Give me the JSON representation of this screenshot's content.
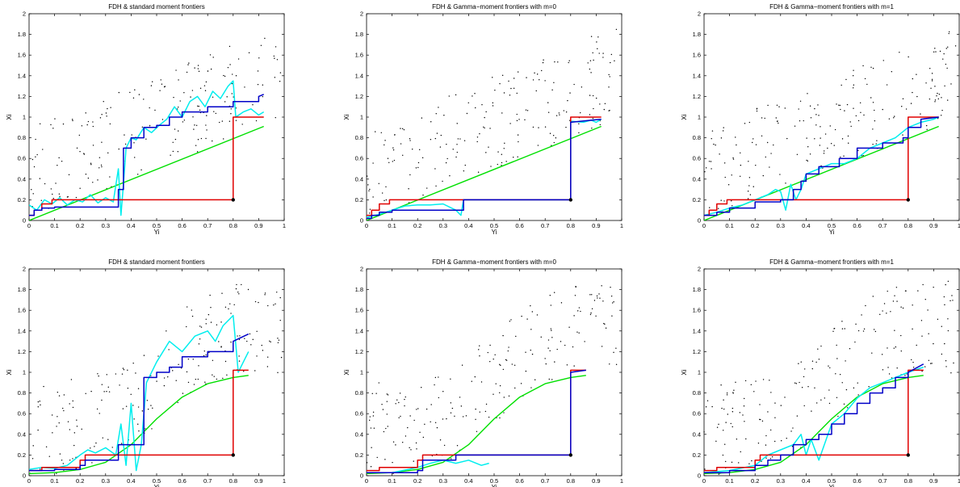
{
  "figure": {
    "background": "#ffffff"
  },
  "colors": {
    "fdh": "#e00000",
    "standard": "#00e000",
    "gamma": "#00eeee",
    "blue": "#0000c8",
    "points": "#000000",
    "axis": "#000000"
  },
  "chart_data": [
    {
      "type": "line",
      "title": "FDH & standard moment frontiers",
      "xlabel": "Yi",
      "ylabel": "Xi",
      "xlim": [
        0,
        1
      ],
      "ylim": [
        0,
        2
      ],
      "xticks": [
        "0",
        "0.1",
        "0.2",
        "0.3",
        "0.4",
        "0.5",
        "0.6",
        "0.7",
        "0.8",
        "0.9",
        "1"
      ],
      "yticks": [
        "0",
        "0.2",
        "0.4",
        "0.6",
        "0.8",
        "1",
        "1.2",
        "1.4",
        "1.6",
        "1.8",
        "2"
      ],
      "true_frontier": "linear",
      "series": [
        {
          "color": "red",
          "x": [
            0,
            0.02,
            0.02,
            0.05,
            0.05,
            0.09,
            0.09,
            0.8,
            0.8,
            0.92
          ],
          "y": [
            0.05,
            0.05,
            0.1,
            0.1,
            0.16,
            0.16,
            0.2,
            0.2,
            1.0,
            1.0
          ]
        },
        {
          "color": "green",
          "x": [
            0,
            0.92
          ],
          "y": [
            0,
            0.91
          ]
        },
        {
          "color": "cyan",
          "x": [
            0,
            0.03,
            0.06,
            0.09,
            0.12,
            0.15,
            0.18,
            0.21,
            0.24,
            0.27,
            0.3,
            0.33,
            0.35,
            0.36,
            0.37,
            0.38,
            0.4,
            0.42,
            0.45,
            0.48,
            0.51,
            0.54,
            0.57,
            0.6,
            0.63,
            0.66,
            0.69,
            0.72,
            0.75,
            0.78,
            0.8,
            0.81,
            0.84,
            0.87,
            0.9,
            0.92
          ],
          "y": [
            0.15,
            0.1,
            0.2,
            0.16,
            0.22,
            0.15,
            0.2,
            0.18,
            0.25,
            0.17,
            0.22,
            0.18,
            0.5,
            0.05,
            0.35,
            0.7,
            0.8,
            0.78,
            0.9,
            0.85,
            0.92,
            0.98,
            1.1,
            1.0,
            1.15,
            1.2,
            1.1,
            1.25,
            1.18,
            1.3,
            1.35,
            1.0,
            1.05,
            1.08,
            1.02,
            1.05
          ]
        },
        {
          "color": "blue",
          "x": [
            0,
            0.02,
            0.02,
            0.05,
            0.05,
            0.1,
            0.1,
            0.35,
            0.35,
            0.37,
            0.37,
            0.4,
            0.4,
            0.45,
            0.45,
            0.5,
            0.5,
            0.55,
            0.55,
            0.6,
            0.6,
            0.7,
            0.7,
            0.8,
            0.8,
            0.9,
            0.9,
            0.92
          ],
          "y": [
            0.05,
            0.05,
            0.1,
            0.1,
            0.12,
            0.12,
            0.13,
            0.13,
            0.3,
            0.3,
            0.7,
            0.7,
            0.8,
            0.8,
            0.9,
            0.9,
            0.92,
            0.92,
            1.0,
            1.0,
            1.05,
            1.05,
            1.1,
            1.1,
            1.15,
            1.15,
            1.2,
            1.22
          ]
        }
      ]
    },
    {
      "type": "line",
      "title": "FDH & Gamma−moment frontiers with m=0",
      "xlabel": "Yi",
      "ylabel": "Xi",
      "xlim": [
        0,
        1
      ],
      "ylim": [
        0,
        2
      ],
      "xticks": [
        "0",
        "0.1",
        "0.2",
        "0.3",
        "0.4",
        "0.5",
        "0.6",
        "0.7",
        "0.8",
        "0.9",
        "1"
      ],
      "yticks": [
        "0",
        "0.2",
        "0.4",
        "0.6",
        "0.8",
        "1",
        "1.2",
        "1.4",
        "1.6",
        "1.8",
        "2"
      ],
      "true_frontier": "linear",
      "series": [
        {
          "color": "red",
          "x": [
            0,
            0.02,
            0.02,
            0.05,
            0.05,
            0.09,
            0.09,
            0.8,
            0.8,
            0.92
          ],
          "y": [
            0.05,
            0.05,
            0.1,
            0.1,
            0.16,
            0.16,
            0.2,
            0.2,
            1.0,
            1.0
          ]
        },
        {
          "color": "green",
          "x": [
            0,
            0.92
          ],
          "y": [
            0,
            0.91
          ]
        },
        {
          "color": "cyan",
          "x": [
            0,
            0.05,
            0.1,
            0.15,
            0.2,
            0.25,
            0.3,
            0.35,
            0.37,
            0.38,
            0.4,
            0.8,
            0.8,
            0.85,
            0.88,
            0.9,
            0.92
          ],
          "y": [
            0.03,
            0.06,
            0.1,
            0.14,
            0.15,
            0.15,
            0.16,
            0.1,
            0.05,
            0.2,
            0.2,
            0.2,
            0.96,
            0.95,
            0.97,
            0.95,
            0.98
          ]
        },
        {
          "color": "blue",
          "x": [
            0,
            0.02,
            0.02,
            0.05,
            0.05,
            0.1,
            0.1,
            0.38,
            0.38,
            0.8,
            0.8,
            0.92
          ],
          "y": [
            0.02,
            0.02,
            0.05,
            0.05,
            0.08,
            0.08,
            0.1,
            0.1,
            0.2,
            0.2,
            0.95,
            0.98
          ]
        }
      ]
    },
    {
      "type": "line",
      "title": "FDH & Gamma−moment frontiers with m=1",
      "xlabel": "Yi",
      "ylabel": "Xi",
      "xlim": [
        0,
        1
      ],
      "ylim": [
        0,
        2
      ],
      "xticks": [
        "0",
        "0.1",
        "0.2",
        "0.3",
        "0.4",
        "0.5",
        "0.6",
        "0.7",
        "0.8",
        "0.9",
        "1"
      ],
      "yticks": [
        "0",
        "0.2",
        "0.4",
        "0.6",
        "0.8",
        "1",
        "1.2",
        "1.4",
        "1.6",
        "1.8",
        "2"
      ],
      "true_frontier": "linear",
      "series": [
        {
          "color": "red",
          "x": [
            0,
            0.02,
            0.02,
            0.05,
            0.05,
            0.09,
            0.09,
            0.8,
            0.8,
            0.92
          ],
          "y": [
            0.05,
            0.05,
            0.1,
            0.1,
            0.16,
            0.16,
            0.2,
            0.2,
            1.0,
            1.0
          ]
        },
        {
          "color": "green",
          "x": [
            0,
            0.92
          ],
          "y": [
            0,
            0.91
          ]
        },
        {
          "color": "cyan",
          "x": [
            0,
            0.05,
            0.1,
            0.15,
            0.2,
            0.25,
            0.28,
            0.3,
            0.32,
            0.34,
            0.36,
            0.38,
            0.4,
            0.45,
            0.5,
            0.55,
            0.6,
            0.65,
            0.7,
            0.75,
            0.8,
            0.85,
            0.9,
            0.92
          ],
          "y": [
            0.05,
            0.08,
            0.12,
            0.15,
            0.2,
            0.25,
            0.3,
            0.28,
            0.1,
            0.35,
            0.2,
            0.3,
            0.45,
            0.5,
            0.55,
            0.55,
            0.6,
            0.7,
            0.75,
            0.8,
            0.9,
            0.95,
            0.98,
            1.0
          ]
        },
        {
          "color": "blue",
          "x": [
            0,
            0.05,
            0.05,
            0.1,
            0.1,
            0.2,
            0.2,
            0.3,
            0.3,
            0.35,
            0.35,
            0.38,
            0.38,
            0.4,
            0.4,
            0.45,
            0.45,
            0.53,
            0.53,
            0.6,
            0.6,
            0.7,
            0.7,
            0.78,
            0.78,
            0.8,
            0.8,
            0.85,
            0.85,
            0.92
          ],
          "y": [
            0.05,
            0.05,
            0.08,
            0.08,
            0.12,
            0.12,
            0.18,
            0.18,
            0.2,
            0.2,
            0.3,
            0.3,
            0.38,
            0.38,
            0.45,
            0.45,
            0.52,
            0.52,
            0.6,
            0.6,
            0.7,
            0.7,
            0.75,
            0.75,
            0.8,
            0.8,
            0.9,
            0.9,
            0.98,
            1.0
          ]
        }
      ]
    },
    {
      "type": "line",
      "title": "FDH & standard moment frontiers",
      "xlabel": "Yi",
      "ylabel": "Xi",
      "xlim": [
        0,
        1
      ],
      "ylim": [
        0,
        2
      ],
      "xticks": [
        "0",
        "0.1",
        "0.2",
        "0.3",
        "0.4",
        "0.5",
        "0.6",
        "0.7",
        "0.8",
        "0.9",
        "1"
      ],
      "yticks": [
        "0",
        "0.2",
        "0.4",
        "0.6",
        "0.8",
        "1",
        "1.2",
        "1.4",
        "1.6",
        "1.8",
        "2"
      ],
      "true_frontier": "sigmoid",
      "series": [
        {
          "color": "red",
          "x": [
            0,
            0.05,
            0.05,
            0.2,
            0.2,
            0.22,
            0.22,
            0.8,
            0.8,
            0.86
          ],
          "y": [
            0.05,
            0.05,
            0.08,
            0.08,
            0.15,
            0.15,
            0.2,
            0.2,
            1.02,
            1.02
          ]
        },
        {
          "color": "green",
          "x": [
            0,
            0.1,
            0.2,
            0.3,
            0.4,
            0.5,
            0.6,
            0.7,
            0.8,
            0.86
          ],
          "y": [
            0.02,
            0.03,
            0.06,
            0.13,
            0.3,
            0.55,
            0.76,
            0.89,
            0.95,
            0.97
          ]
        },
        {
          "color": "cyan",
          "x": [
            0,
            0.05,
            0.1,
            0.15,
            0.2,
            0.23,
            0.26,
            0.3,
            0.34,
            0.36,
            0.38,
            0.4,
            0.42,
            0.44,
            0.46,
            0.5,
            0.55,
            0.6,
            0.65,
            0.7,
            0.73,
            0.76,
            0.8,
            0.82,
            0.84,
            0.86
          ],
          "y": [
            0.06,
            0.08,
            0.07,
            0.1,
            0.2,
            0.25,
            0.22,
            0.27,
            0.2,
            0.5,
            0.1,
            0.7,
            0.05,
            0.3,
            0.9,
            1.1,
            1.3,
            1.2,
            1.35,
            1.4,
            1.3,
            1.45,
            1.55,
            1.0,
            1.1,
            1.2
          ]
        },
        {
          "color": "blue",
          "x": [
            0,
            0.1,
            0.1,
            0.2,
            0.2,
            0.22,
            0.22,
            0.35,
            0.35,
            0.45,
            0.45,
            0.5,
            0.5,
            0.55,
            0.55,
            0.6,
            0.6,
            0.7,
            0.7,
            0.8,
            0.8,
            0.86
          ],
          "y": [
            0.05,
            0.05,
            0.06,
            0.06,
            0.1,
            0.1,
            0.15,
            0.15,
            0.3,
            0.3,
            0.95,
            0.95,
            1.0,
            1.0,
            1.05,
            1.05,
            1.15,
            1.15,
            1.2,
            1.2,
            1.3,
            1.37
          ]
        }
      ]
    },
    {
      "type": "line",
      "title": "FDH & Gamma−moment frontiers with m=0",
      "xlabel": "Yi",
      "ylabel": "Xi",
      "xlim": [
        0,
        1
      ],
      "ylim": [
        0,
        2
      ],
      "xticks": [
        "0",
        "0.1",
        "0.2",
        "0.3",
        "0.4",
        "0.5",
        "0.6",
        "0.7",
        "0.8",
        "0.9",
        "1"
      ],
      "yticks": [
        "0",
        "0.2",
        "0.4",
        "0.6",
        "0.8",
        "1",
        "1.2",
        "1.4",
        "1.6",
        "1.8",
        "2"
      ],
      "true_frontier": "sigmoid",
      "series": [
        {
          "color": "red",
          "x": [
            0,
            0.05,
            0.05,
            0.2,
            0.2,
            0.22,
            0.22,
            0.8,
            0.8,
            0.86
          ],
          "y": [
            0.05,
            0.05,
            0.08,
            0.08,
            0.15,
            0.15,
            0.2,
            0.2,
            1.02,
            1.02
          ]
        },
        {
          "color": "green",
          "x": [
            0,
            0.1,
            0.2,
            0.3,
            0.4,
            0.5,
            0.6,
            0.7,
            0.8,
            0.86
          ],
          "y": [
            0.02,
            0.03,
            0.06,
            0.13,
            0.3,
            0.55,
            0.76,
            0.89,
            0.95,
            0.97
          ]
        },
        {
          "color": "cyan",
          "x": [
            0,
            0.1,
            0.2,
            0.25,
            0.3,
            0.35,
            0.4,
            0.45,
            0.48
          ],
          "y": [
            0.03,
            0.03,
            0.08,
            0.12,
            0.15,
            0.12,
            0.15,
            0.1,
            0.12
          ]
        },
        {
          "color": "blue",
          "x": [
            0,
            0.2,
            0.2,
            0.22,
            0.22,
            0.35,
            0.35,
            0.8,
            0.8,
            0.86
          ],
          "y": [
            0.03,
            0.03,
            0.05,
            0.05,
            0.15,
            0.15,
            0.2,
            0.2,
            1.0,
            1.02
          ]
        }
      ]
    },
    {
      "type": "line",
      "title": "FDH & Gamma−moment frontiers with m=1",
      "xlabel": "Yi",
      "ylabel": "Xi",
      "xlim": [
        0,
        1
      ],
      "ylim": [
        0,
        2
      ],
      "xticks": [
        "0",
        "0.1",
        "0.2",
        "0.3",
        "0.4",
        "0.5",
        "0.6",
        "0.7",
        "0.8",
        "0.9",
        "1"
      ],
      "yticks": [
        "0",
        "0.2",
        "0.4",
        "0.6",
        "0.8",
        "1",
        "1.2",
        "1.4",
        "1.6",
        "1.8",
        "2"
      ],
      "true_frontier": "sigmoid",
      "series": [
        {
          "color": "red",
          "x": [
            0,
            0.05,
            0.05,
            0.2,
            0.2,
            0.22,
            0.22,
            0.8,
            0.8,
            0.86
          ],
          "y": [
            0.05,
            0.05,
            0.08,
            0.08,
            0.15,
            0.15,
            0.2,
            0.2,
            1.02,
            1.02
          ]
        },
        {
          "color": "green",
          "x": [
            0,
            0.1,
            0.2,
            0.3,
            0.4,
            0.5,
            0.6,
            0.7,
            0.8,
            0.86
          ],
          "y": [
            0.02,
            0.03,
            0.06,
            0.13,
            0.3,
            0.55,
            0.76,
            0.89,
            0.95,
            0.97
          ]
        },
        {
          "color": "cyan",
          "x": [
            0,
            0.1,
            0.2,
            0.25,
            0.3,
            0.35,
            0.38,
            0.4,
            0.42,
            0.45,
            0.5,
            0.55,
            0.6,
            0.65,
            0.7,
            0.75,
            0.8,
            0.86
          ],
          "y": [
            0.03,
            0.05,
            0.1,
            0.2,
            0.25,
            0.3,
            0.4,
            0.2,
            0.35,
            0.15,
            0.5,
            0.6,
            0.75,
            0.85,
            0.9,
            0.95,
            1.0,
            1.05
          ]
        },
        {
          "color": "blue",
          "x": [
            0,
            0.1,
            0.1,
            0.2,
            0.2,
            0.25,
            0.25,
            0.3,
            0.3,
            0.35,
            0.35,
            0.4,
            0.4,
            0.45,
            0.45,
            0.5,
            0.5,
            0.55,
            0.55,
            0.6,
            0.6,
            0.65,
            0.65,
            0.7,
            0.7,
            0.75,
            0.75,
            0.8,
            0.8,
            0.86
          ],
          "y": [
            0.03,
            0.03,
            0.05,
            0.05,
            0.1,
            0.1,
            0.15,
            0.15,
            0.2,
            0.2,
            0.3,
            0.3,
            0.35,
            0.35,
            0.4,
            0.4,
            0.5,
            0.5,
            0.6,
            0.6,
            0.7,
            0.7,
            0.8,
            0.8,
            0.85,
            0.85,
            0.95,
            0.95,
            1.0,
            1.08
          ]
        }
      ]
    }
  ]
}
